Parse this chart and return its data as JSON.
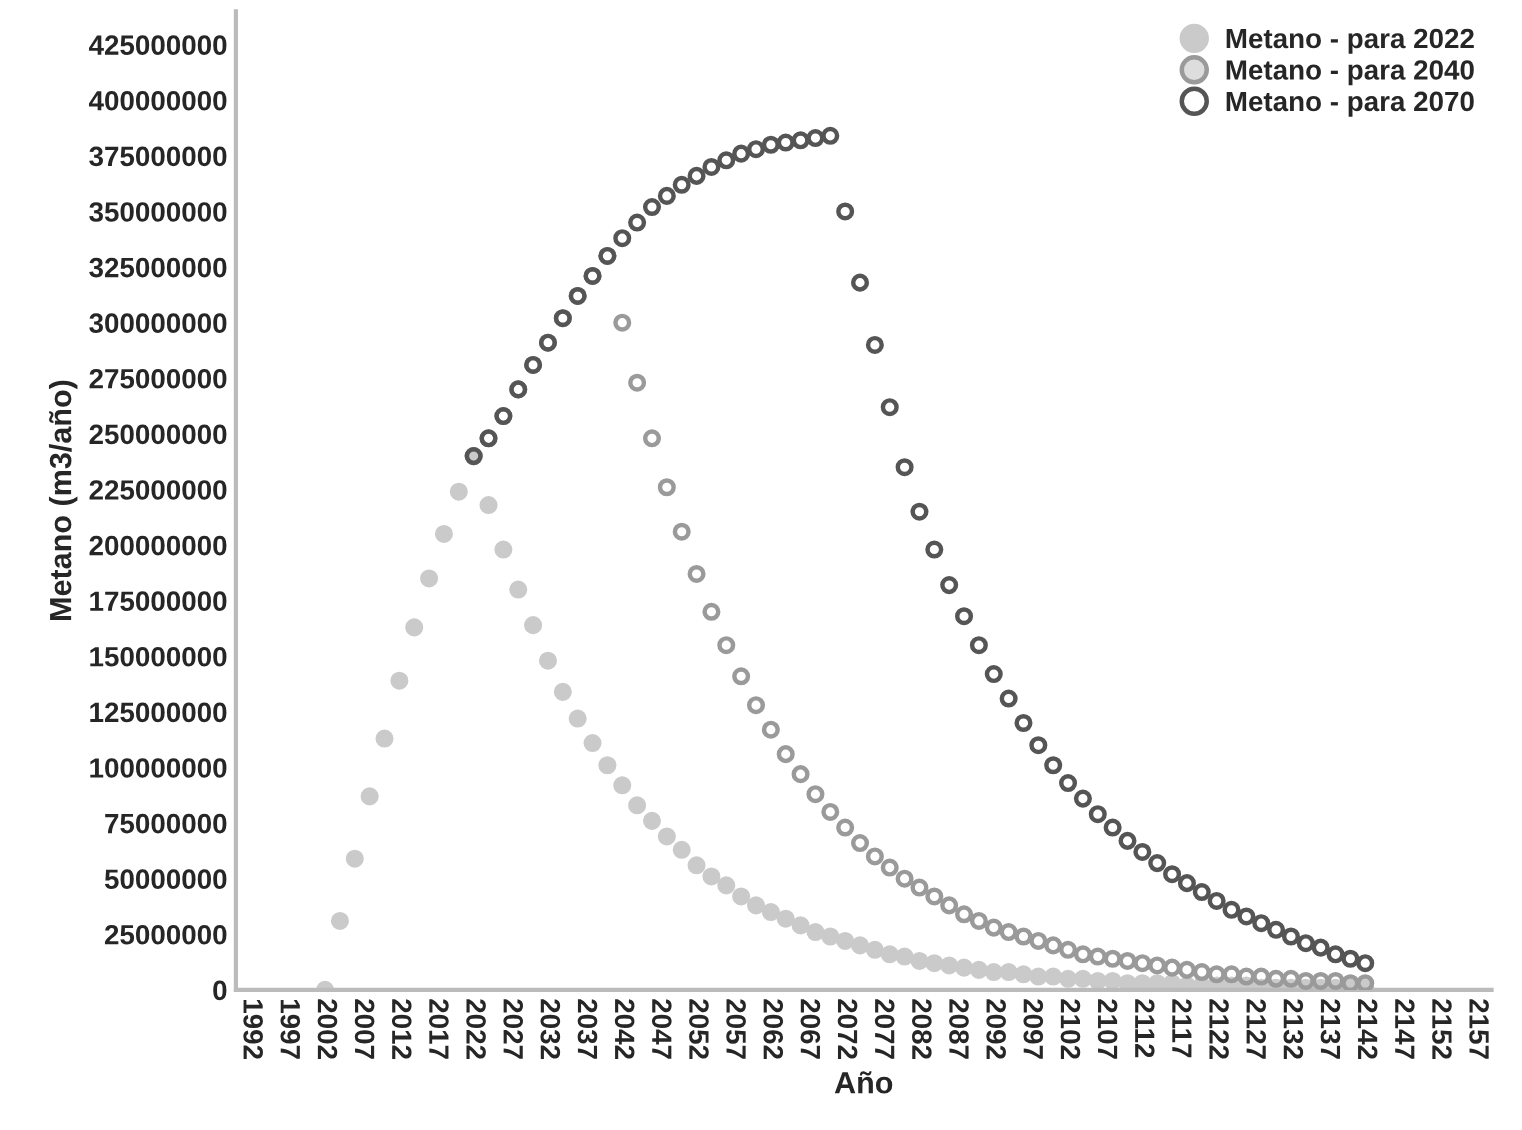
{
  "chart_data": {
    "type": "scatter",
    "xlabel": "Año",
    "ylabel": "Metano (m3/año)",
    "x": [
      2002,
      2004,
      2006,
      2008,
      2010,
      2012,
      2014,
      2016,
      2018,
      2020,
      2022,
      2024,
      2026,
      2028,
      2030,
      2032,
      2034,
      2036,
      2038,
      2040,
      2042,
      2044,
      2046,
      2048,
      2050,
      2052,
      2054,
      2056,
      2058,
      2060,
      2062,
      2064,
      2066,
      2068,
      2070,
      2072,
      2074,
      2076,
      2078,
      2080,
      2082,
      2084,
      2086,
      2088,
      2090,
      2092,
      2094,
      2096,
      2098,
      2100,
      2102,
      2104,
      2106,
      2108,
      2110,
      2112,
      2114,
      2116,
      2118,
      2120,
      2122,
      2124,
      2126,
      2128,
      2130,
      2132,
      2134,
      2136,
      2138,
      2140,
      2142
    ],
    "series": [
      {
        "name": "Metano - para 2022",
        "color": "#cacaca",
        "values": [
          0,
          31000000,
          59000000,
          87000000,
          113000000,
          139000000,
          163000000,
          185000000,
          205000000,
          224000000,
          240000000,
          218000000,
          198000000,
          180000000,
          164000000,
          148000000,
          134000000,
          122000000,
          111000000,
          101000000,
          92000000,
          83000000,
          76000000,
          69000000,
          63000000,
          56000000,
          51000000,
          47000000,
          42000000,
          38000000,
          35000000,
          32000000,
          29000000,
          26000000,
          24000000,
          22000000,
          20000000,
          18000000,
          16000000,
          15000000,
          13000000,
          12000000,
          11000000,
          10000000,
          9000000,
          8000000,
          8000000,
          7000000,
          6000000,
          6000000,
          5000000,
          5000000,
          4000000,
          4000000,
          3000000,
          3000000,
          3000000,
          3000000,
          2000000,
          2000000,
          2000000,
          2000000,
          2000000,
          1000000,
          1000000,
          1000000,
          1000000,
          1000000,
          1000000,
          1000000,
          1000000
        ]
      },
      {
        "name": "Metano - para 2040",
        "color": "#9a9a9a",
        "values": [
          null,
          null,
          null,
          null,
          null,
          null,
          null,
          null,
          null,
          null,
          240000000,
          248000000,
          258000000,
          270000000,
          281000000,
          291000000,
          302000000,
          312000000,
          321000000,
          330000000,
          300000000,
          273000000,
          248000000,
          226000000,
          206000000,
          187000000,
          170000000,
          155000000,
          141000000,
          128000000,
          117000000,
          106000000,
          97000000,
          88000000,
          80000000,
          73000000,
          66000000,
          60000000,
          55000000,
          50000000,
          46000000,
          42000000,
          38000000,
          34000000,
          31000000,
          28000000,
          26000000,
          24000000,
          22000000,
          20000000,
          18000000,
          16000000,
          15000000,
          14000000,
          13000000,
          12000000,
          11000000,
          10000000,
          9000000,
          8000000,
          7000000,
          7000000,
          6000000,
          6000000,
          5000000,
          5000000,
          4000000,
          4000000,
          4000000,
          3000000,
          3000000
        ]
      },
      {
        "name": "Metano - para 2070",
        "color": "#555555",
        "values": [
          null,
          null,
          null,
          null,
          null,
          null,
          null,
          null,
          null,
          null,
          240000000,
          248000000,
          258000000,
          270000000,
          281000000,
          291000000,
          302000000,
          312000000,
          321000000,
          330000000,
          338000000,
          345000000,
          352000000,
          357000000,
          362000000,
          366000000,
          370000000,
          373000000,
          376000000,
          378000000,
          380000000,
          381000000,
          382000000,
          383000000,
          384000000,
          350000000,
          318000000,
          290000000,
          262000000,
          235000000,
          215000000,
          198000000,
          182000000,
          168000000,
          155000000,
          142000000,
          131000000,
          120000000,
          110000000,
          101000000,
          93000000,
          86000000,
          79000000,
          73000000,
          67000000,
          62000000,
          57000000,
          52000000,
          48000000,
          44000000,
          40000000,
          36000000,
          33000000,
          30000000,
          27000000,
          24000000,
          21000000,
          19000000,
          16000000,
          14000000,
          12000000
        ]
      }
    ],
    "xlim": [
      1990,
      2159
    ],
    "xticks": [
      1992,
      1997,
      2002,
      2007,
      2012,
      2017,
      2022,
      2027,
      2032,
      2037,
      2042,
      2047,
      2052,
      2057,
      2062,
      2067,
      2072,
      2077,
      2082,
      2087,
      2092,
      2097,
      2102,
      2107,
      2112,
      2117,
      2122,
      2127,
      2132,
      2137,
      2142,
      2147,
      2152,
      2157
    ],
    "ylim": [
      0,
      440000000
    ],
    "yticks": [
      0,
      25000000,
      50000000,
      75000000,
      100000000,
      125000000,
      150000000,
      175000000,
      200000000,
      225000000,
      250000000,
      275000000,
      300000000,
      325000000,
      350000000,
      375000000,
      400000000,
      425000000
    ],
    "marker": "circle",
    "legend": "top right",
    "grid": false
  }
}
